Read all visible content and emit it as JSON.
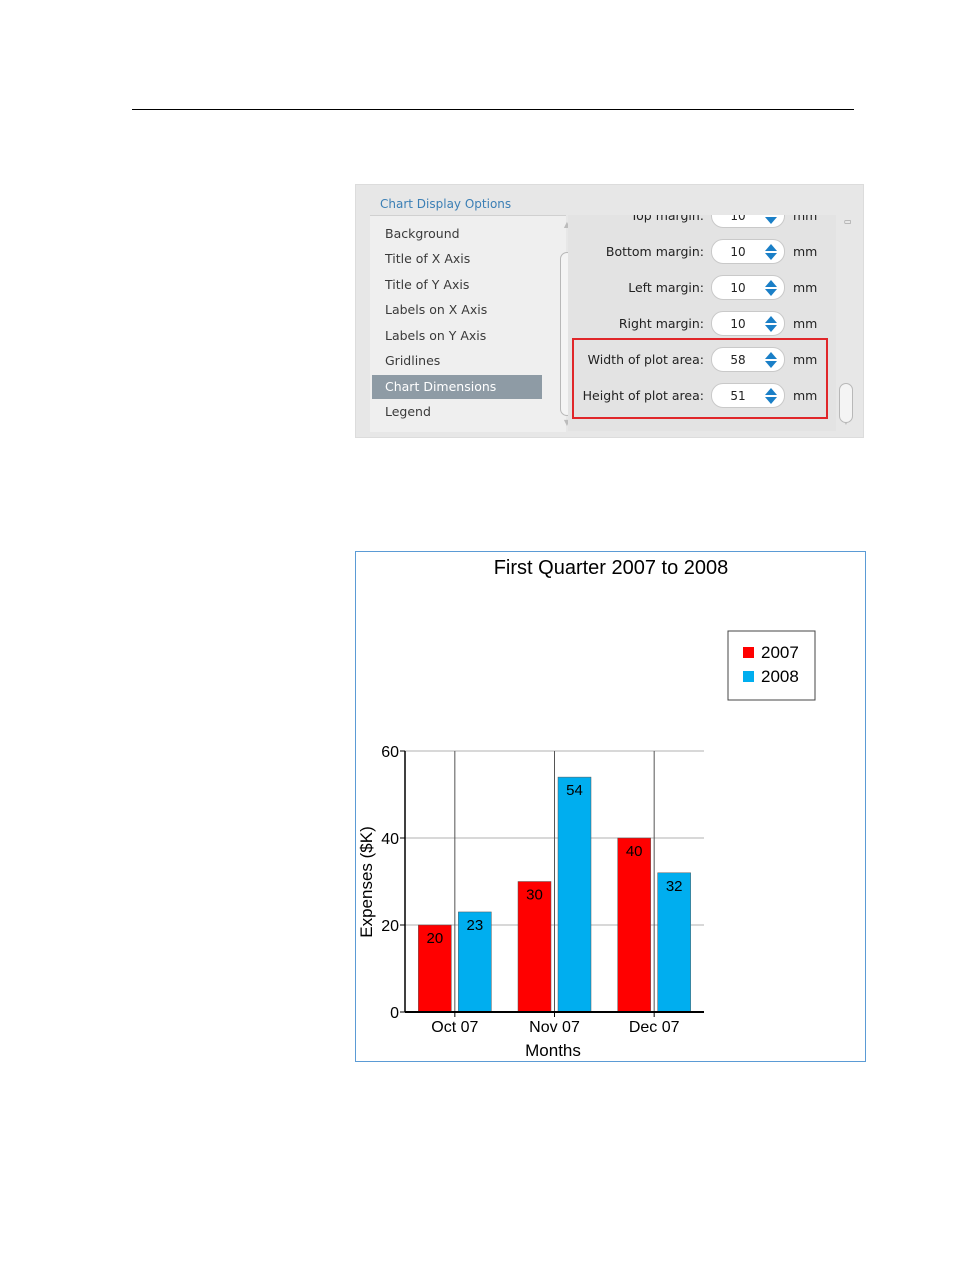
{
  "panel": {
    "title": "Chart Display Options",
    "list_items": [
      "Background",
      "Title of X Axis",
      "Title of Y Axis",
      "Labels on X Axis",
      "Labels on Y Axis",
      "Gridlines",
      "Chart Dimensions",
      "Legend"
    ],
    "selected_item": "Chart Dimensions",
    "settings": [
      {
        "label": "Top margin:",
        "value": "10",
        "unit": "mm"
      },
      {
        "label": "Bottom margin:",
        "value": "10",
        "unit": "mm"
      },
      {
        "label": "Left margin:",
        "value": "10",
        "unit": "mm"
      },
      {
        "label": "Right margin:",
        "value": "10",
        "unit": "mm"
      },
      {
        "label": "Width of plot area:",
        "value": "58",
        "unit": "mm"
      },
      {
        "label": "Height of plot area:",
        "value": "51",
        "unit": "mm"
      }
    ],
    "highlight_color": "#e0262a"
  },
  "chart_data": {
    "type": "bar",
    "title": "First Quarter 2007 to 2008",
    "xlabel": "Months",
    "ylabel": "Expenses ($K)",
    "categories": [
      "Oct 07",
      "Nov 07",
      "Dec 07"
    ],
    "series": [
      {
        "name": "2007",
        "values": [
          20,
          30,
          40
        ],
        "color": "#ff0000"
      },
      {
        "name": "2008",
        "values": [
          23,
          54,
          32
        ],
        "color": "#00aeef"
      }
    ],
    "ylim": [
      0,
      60
    ],
    "yticks": [
      0,
      20,
      40,
      60
    ],
    "grid": true,
    "legend_position": "top-right"
  }
}
